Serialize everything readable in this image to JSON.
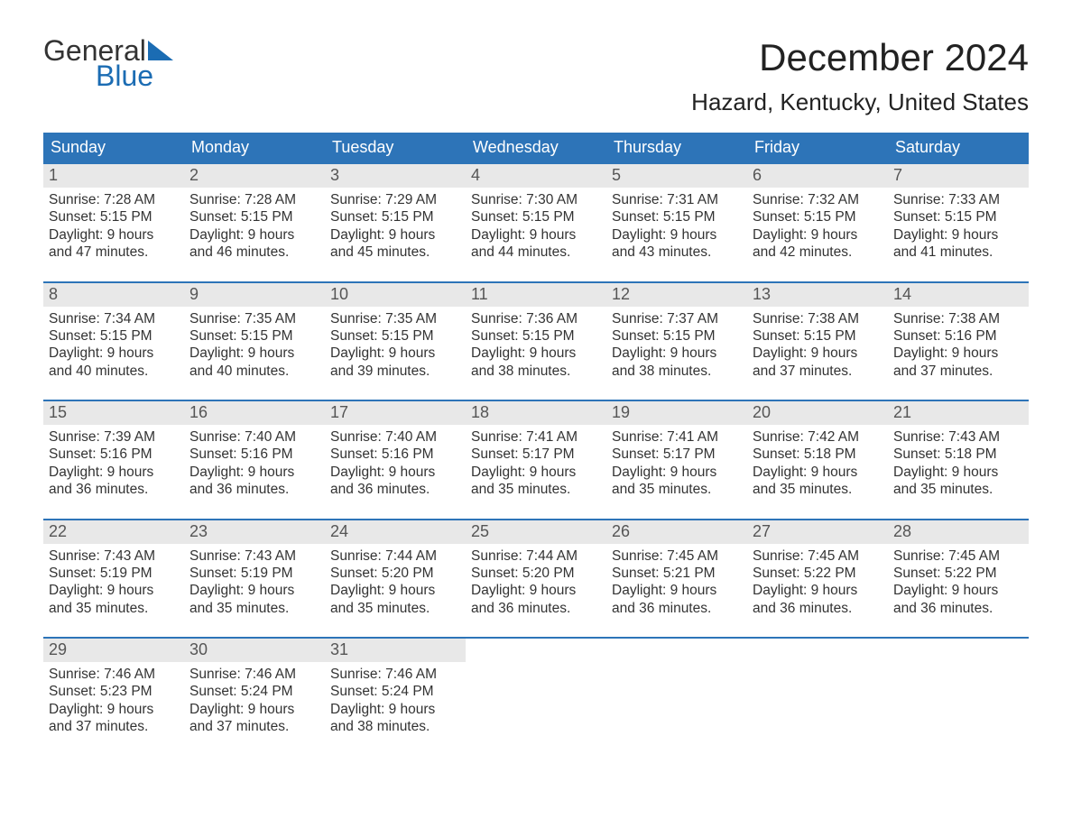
{
  "logo": {
    "word1": "General",
    "word2": "Blue"
  },
  "title": "December 2024",
  "location": "Hazard, Kentucky, United States",
  "colors": {
    "header_bg": "#2d74b8",
    "header_text": "#ffffff",
    "daynum_bg": "#e8e8e8",
    "daynum_text": "#555555",
    "body_text": "#333333",
    "accent": "#1b6cb3",
    "week_divider": "#2d74b8",
    "page_bg": "#ffffff"
  },
  "typography": {
    "title_fontsize": 42,
    "location_fontsize": 26,
    "dow_fontsize": 18,
    "daynum_fontsize": 18,
    "body_fontsize": 15.5,
    "font_family": "Arial"
  },
  "days_of_week": [
    "Sunday",
    "Monday",
    "Tuesday",
    "Wednesday",
    "Thursday",
    "Friday",
    "Saturday"
  ],
  "weeks": [
    [
      {
        "num": "1",
        "sunrise": "Sunrise: 7:28 AM",
        "sunset": "Sunset: 5:15 PM",
        "dl1": "Daylight: 9 hours",
        "dl2": "and 47 minutes."
      },
      {
        "num": "2",
        "sunrise": "Sunrise: 7:28 AM",
        "sunset": "Sunset: 5:15 PM",
        "dl1": "Daylight: 9 hours",
        "dl2": "and 46 minutes."
      },
      {
        "num": "3",
        "sunrise": "Sunrise: 7:29 AM",
        "sunset": "Sunset: 5:15 PM",
        "dl1": "Daylight: 9 hours",
        "dl2": "and 45 minutes."
      },
      {
        "num": "4",
        "sunrise": "Sunrise: 7:30 AM",
        "sunset": "Sunset: 5:15 PM",
        "dl1": "Daylight: 9 hours",
        "dl2": "and 44 minutes."
      },
      {
        "num": "5",
        "sunrise": "Sunrise: 7:31 AM",
        "sunset": "Sunset: 5:15 PM",
        "dl1": "Daylight: 9 hours",
        "dl2": "and 43 minutes."
      },
      {
        "num": "6",
        "sunrise": "Sunrise: 7:32 AM",
        "sunset": "Sunset: 5:15 PM",
        "dl1": "Daylight: 9 hours",
        "dl2": "and 42 minutes."
      },
      {
        "num": "7",
        "sunrise": "Sunrise: 7:33 AM",
        "sunset": "Sunset: 5:15 PM",
        "dl1": "Daylight: 9 hours",
        "dl2": "and 41 minutes."
      }
    ],
    [
      {
        "num": "8",
        "sunrise": "Sunrise: 7:34 AM",
        "sunset": "Sunset: 5:15 PM",
        "dl1": "Daylight: 9 hours",
        "dl2": "and 40 minutes."
      },
      {
        "num": "9",
        "sunrise": "Sunrise: 7:35 AM",
        "sunset": "Sunset: 5:15 PM",
        "dl1": "Daylight: 9 hours",
        "dl2": "and 40 minutes."
      },
      {
        "num": "10",
        "sunrise": "Sunrise: 7:35 AM",
        "sunset": "Sunset: 5:15 PM",
        "dl1": "Daylight: 9 hours",
        "dl2": "and 39 minutes."
      },
      {
        "num": "11",
        "sunrise": "Sunrise: 7:36 AM",
        "sunset": "Sunset: 5:15 PM",
        "dl1": "Daylight: 9 hours",
        "dl2": "and 38 minutes."
      },
      {
        "num": "12",
        "sunrise": "Sunrise: 7:37 AM",
        "sunset": "Sunset: 5:15 PM",
        "dl1": "Daylight: 9 hours",
        "dl2": "and 38 minutes."
      },
      {
        "num": "13",
        "sunrise": "Sunrise: 7:38 AM",
        "sunset": "Sunset: 5:15 PM",
        "dl1": "Daylight: 9 hours",
        "dl2": "and 37 minutes."
      },
      {
        "num": "14",
        "sunrise": "Sunrise: 7:38 AM",
        "sunset": "Sunset: 5:16 PM",
        "dl1": "Daylight: 9 hours",
        "dl2": "and 37 minutes."
      }
    ],
    [
      {
        "num": "15",
        "sunrise": "Sunrise: 7:39 AM",
        "sunset": "Sunset: 5:16 PM",
        "dl1": "Daylight: 9 hours",
        "dl2": "and 36 minutes."
      },
      {
        "num": "16",
        "sunrise": "Sunrise: 7:40 AM",
        "sunset": "Sunset: 5:16 PM",
        "dl1": "Daylight: 9 hours",
        "dl2": "and 36 minutes."
      },
      {
        "num": "17",
        "sunrise": "Sunrise: 7:40 AM",
        "sunset": "Sunset: 5:16 PM",
        "dl1": "Daylight: 9 hours",
        "dl2": "and 36 minutes."
      },
      {
        "num": "18",
        "sunrise": "Sunrise: 7:41 AM",
        "sunset": "Sunset: 5:17 PM",
        "dl1": "Daylight: 9 hours",
        "dl2": "and 35 minutes."
      },
      {
        "num": "19",
        "sunrise": "Sunrise: 7:41 AM",
        "sunset": "Sunset: 5:17 PM",
        "dl1": "Daylight: 9 hours",
        "dl2": "and 35 minutes."
      },
      {
        "num": "20",
        "sunrise": "Sunrise: 7:42 AM",
        "sunset": "Sunset: 5:18 PM",
        "dl1": "Daylight: 9 hours",
        "dl2": "and 35 minutes."
      },
      {
        "num": "21",
        "sunrise": "Sunrise: 7:43 AM",
        "sunset": "Sunset: 5:18 PM",
        "dl1": "Daylight: 9 hours",
        "dl2": "and 35 minutes."
      }
    ],
    [
      {
        "num": "22",
        "sunrise": "Sunrise: 7:43 AM",
        "sunset": "Sunset: 5:19 PM",
        "dl1": "Daylight: 9 hours",
        "dl2": "and 35 minutes."
      },
      {
        "num": "23",
        "sunrise": "Sunrise: 7:43 AM",
        "sunset": "Sunset: 5:19 PM",
        "dl1": "Daylight: 9 hours",
        "dl2": "and 35 minutes."
      },
      {
        "num": "24",
        "sunrise": "Sunrise: 7:44 AM",
        "sunset": "Sunset: 5:20 PM",
        "dl1": "Daylight: 9 hours",
        "dl2": "and 35 minutes."
      },
      {
        "num": "25",
        "sunrise": "Sunrise: 7:44 AM",
        "sunset": "Sunset: 5:20 PM",
        "dl1": "Daylight: 9 hours",
        "dl2": "and 36 minutes."
      },
      {
        "num": "26",
        "sunrise": "Sunrise: 7:45 AM",
        "sunset": "Sunset: 5:21 PM",
        "dl1": "Daylight: 9 hours",
        "dl2": "and 36 minutes."
      },
      {
        "num": "27",
        "sunrise": "Sunrise: 7:45 AM",
        "sunset": "Sunset: 5:22 PM",
        "dl1": "Daylight: 9 hours",
        "dl2": "and 36 minutes."
      },
      {
        "num": "28",
        "sunrise": "Sunrise: 7:45 AM",
        "sunset": "Sunset: 5:22 PM",
        "dl1": "Daylight: 9 hours",
        "dl2": "and 36 minutes."
      }
    ],
    [
      {
        "num": "29",
        "sunrise": "Sunrise: 7:46 AM",
        "sunset": "Sunset: 5:23 PM",
        "dl1": "Daylight: 9 hours",
        "dl2": "and 37 minutes."
      },
      {
        "num": "30",
        "sunrise": "Sunrise: 7:46 AM",
        "sunset": "Sunset: 5:24 PM",
        "dl1": "Daylight: 9 hours",
        "dl2": "and 37 minutes."
      },
      {
        "num": "31",
        "sunrise": "Sunrise: 7:46 AM",
        "sunset": "Sunset: 5:24 PM",
        "dl1": "Daylight: 9 hours",
        "dl2": "and 38 minutes."
      },
      null,
      null,
      null,
      null
    ]
  ]
}
